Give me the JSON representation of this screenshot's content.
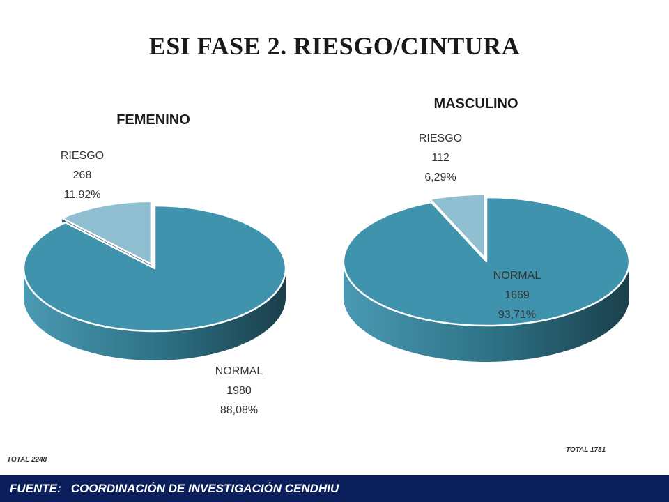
{
  "title": "ESI FASE 2. RIESGO/CINTURA",
  "footer": "FUENTE:   COORDINACIÓN DE INVESTIGACIÓN CENDHIU",
  "chart_data": [
    {
      "type": "pie",
      "title": "FEMENINO",
      "total_label": "TOTAL  2248",
      "slices": [
        {
          "label": "RIESGO",
          "count": "268",
          "percent": "11,92%",
          "value": 11.92,
          "color": "#8fbfd0",
          "exploded": true
        },
        {
          "label": "NORMAL",
          "count": "1980",
          "percent": "88,08%",
          "value": 88.08,
          "color": "#3f93ad",
          "exploded": false
        }
      ]
    },
    {
      "type": "pie",
      "title": "MASCULINO",
      "total_label": "TOTAL  1781",
      "slices": [
        {
          "label": "RIESGO",
          "count": "112",
          "percent": "6,29%",
          "value": 6.29,
          "color": "#8fbfd0",
          "exploded": true
        },
        {
          "label": "NORMAL",
          "count": "1669",
          "percent": "93,71%",
          "value": 93.71,
          "color": "#3f93ad",
          "exploded": false
        }
      ]
    }
  ]
}
